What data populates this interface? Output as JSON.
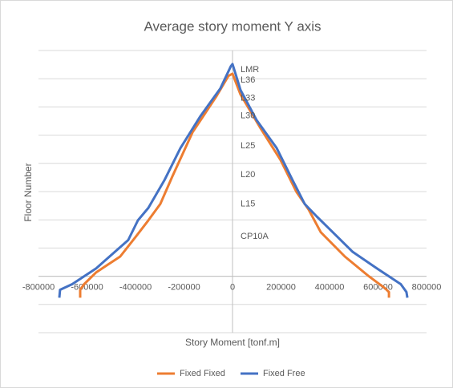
{
  "chart_data": {
    "type": "line",
    "title": "Average story moment Y axis",
    "x_label": "Story Moment [tonf.m]",
    "y_label": "Floor Number",
    "xlim": [
      -800000,
      800000
    ],
    "xticks": [
      -800000,
      -600000,
      -400000,
      -200000,
      0,
      200000,
      400000,
      600000,
      800000
    ],
    "ylim": [
      -10,
      40
    ],
    "yticks": [
      -10,
      -5,
      0,
      5,
      10,
      15,
      20,
      25,
      30,
      35,
      40
    ],
    "grid": true,
    "legend": "bottom",
    "floor_labels": [
      {
        "label": "LMR",
        "y": 36.6
      },
      {
        "label": "L36",
        "y": 34.7
      },
      {
        "label": "L33",
        "y": 31.5
      },
      {
        "label": "L30",
        "y": 28.4
      },
      {
        "label": "L25",
        "y": 23.1
      },
      {
        "label": "L20",
        "y": 18
      },
      {
        "label": "L15",
        "y": 12.8
      },
      {
        "label": "CP10A",
        "y": 7
      }
    ],
    "series": [
      {
        "name": "Fixed Fixed",
        "color": "#ed7d31",
        "x": [
          -628000,
          -628000,
          -612000,
          -562000,
          -463000,
          -397000,
          -347000,
          -298000,
          -248000,
          -165000,
          -66000,
          -17000,
          0,
          33000,
          116000,
          198000,
          264000,
          314000,
          364000,
          463000,
          562000,
          628000,
          645000,
          645000
        ],
        "values": [
          -3.8,
          -2.4,
          -1.4,
          0.7,
          3.5,
          7.1,
          9.9,
          12.8,
          17.7,
          25.5,
          31.9,
          35.5,
          35.9,
          32.2,
          26.2,
          20.6,
          14.9,
          11.8,
          7.8,
          3.5,
          0,
          -2.1,
          -2.8,
          -3.8
        ]
      },
      {
        "name": "Fixed Free",
        "color": "#4472c4",
        "x": [
          -714000,
          -711000,
          -661000,
          -562000,
          -430000,
          -390000,
          -347000,
          -281000,
          -215000,
          -132000,
          -50000,
          -7000,
          0,
          33000,
          99000,
          182000,
          248000,
          298000,
          347000,
          397000,
          496000,
          595000,
          694000,
          717000,
          721000
        ],
        "values": [
          -3.8,
          -2.4,
          -1.4,
          1.4,
          6.4,
          9.9,
          12.1,
          17.0,
          22.7,
          28.4,
          33.3,
          37.2,
          37.6,
          33.0,
          27.7,
          22.7,
          17.0,
          12.8,
          10.6,
          8.5,
          4.3,
          1.4,
          -1.4,
          -2.8,
          -3.8
        ]
      }
    ]
  }
}
